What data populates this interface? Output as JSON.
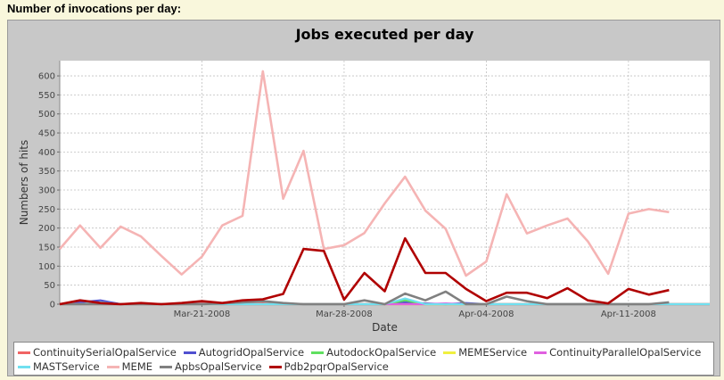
{
  "page": {
    "heading": "Number of invocations per day:"
  },
  "chart_data": {
    "type": "line",
    "title": "Jobs executed per day",
    "xlabel": "Date",
    "ylabel": "Numbers of hits",
    "ylim": [
      0,
      640
    ],
    "yticks": [
      0,
      50,
      100,
      150,
      200,
      250,
      300,
      350,
      400,
      450,
      500,
      550,
      600
    ],
    "grid": true,
    "legend_position": "bottom",
    "x": [
      "2008-03-14",
      "2008-03-15",
      "2008-03-16",
      "2008-03-17",
      "2008-03-18",
      "2008-03-19",
      "2008-03-20",
      "2008-03-21",
      "2008-03-22",
      "2008-03-23",
      "2008-03-24",
      "2008-03-25",
      "2008-03-26",
      "2008-03-27",
      "2008-03-28",
      "2008-03-29",
      "2008-03-30",
      "2008-03-31",
      "2008-04-01",
      "2008-04-02",
      "2008-04-03",
      "2008-04-04",
      "2008-04-05",
      "2008-04-06",
      "2008-04-07",
      "2008-04-08",
      "2008-04-09",
      "2008-04-10",
      "2008-04-11",
      "2008-04-12",
      "2008-04-13",
      "2008-04-14",
      "2008-04-15"
    ],
    "xticks": [
      {
        "date": "2008-03-21",
        "label": "Mar-21-2008"
      },
      {
        "date": "2008-03-28",
        "label": "Mar-28-2008"
      },
      {
        "date": "2008-04-04",
        "label": "Apr-04-2008"
      },
      {
        "date": "2008-04-11",
        "label": "Apr-11-2008"
      }
    ],
    "series": [
      {
        "name": "ContinuitySerialOpalService",
        "color": "#f06464",
        "values": [
          0,
          2,
          3,
          0,
          1,
          0,
          0,
          2,
          0,
          1,
          2,
          0,
          0,
          0,
          0,
          0,
          0,
          0,
          0,
          0,
          0,
          0,
          0,
          0,
          0,
          0,
          0,
          0,
          0,
          0,
          0,
          0,
          0
        ]
      },
      {
        "name": "AutogridOpalService",
        "color": "#5050d0",
        "values": [
          0,
          5,
          10,
          0,
          2,
          0,
          0,
          1,
          0,
          0,
          0,
          0,
          0,
          0,
          0,
          0,
          0,
          5,
          2,
          0,
          3,
          0,
          0,
          0,
          0,
          0,
          0,
          0,
          0,
          0,
          0,
          0,
          0
        ]
      },
      {
        "name": "AutodockOpalService",
        "color": "#60e060",
        "values": [
          0,
          0,
          3,
          0,
          0,
          0,
          0,
          0,
          0,
          0,
          0,
          0,
          0,
          0,
          0,
          0,
          0,
          10,
          0,
          0,
          0,
          0,
          0,
          0,
          0,
          0,
          0,
          0,
          0,
          0,
          0,
          0,
          0
        ]
      },
      {
        "name": "MEMEService",
        "color": "#f0f040",
        "values": [
          0,
          0,
          0,
          0,
          0,
          0,
          0,
          0,
          0,
          0,
          0,
          0,
          0,
          0,
          0,
          0,
          0,
          0,
          0,
          0,
          0,
          0,
          0,
          0,
          0,
          0,
          0,
          0,
          0,
          0,
          0,
          0,
          0
        ]
      },
      {
        "name": "ContinuityParallelOpalService",
        "color": "#e060e0",
        "values": [
          0,
          0,
          0,
          0,
          0,
          0,
          0,
          0,
          0,
          0,
          0,
          0,
          0,
          0,
          0,
          0,
          0,
          0,
          0,
          2,
          0,
          0,
          0,
          0,
          0,
          0,
          0,
          0,
          0,
          0,
          0,
          0,
          0
        ]
      },
      {
        "name": "MASTService",
        "color": "#70e0f0",
        "values": [
          0,
          0,
          5,
          0,
          0,
          0,
          0,
          0,
          0,
          0,
          0,
          0,
          0,
          0,
          0,
          0,
          0,
          15,
          0,
          0,
          0,
          0,
          0,
          0,
          0,
          0,
          0,
          0,
          0,
          0,
          0,
          0,
          0
        ]
      },
      {
        "name": "MEME",
        "color": "#f5b4b4",
        "values": [
          145,
          207,
          148,
          204,
          178,
          127,
          78,
          125,
          207,
          232,
          612,
          277,
          403,
          145,
          155,
          187,
          265,
          335,
          246,
          198,
          75,
          112,
          289,
          186,
          207,
          225,
          165,
          80,
          238,
          250,
          242,
          null,
          null
        ]
      },
      {
        "name": "ApbsOpalService",
        "color": "#808080",
        "values": [
          0,
          0,
          0,
          0,
          0,
          0,
          0,
          0,
          2,
          5,
          8,
          3,
          0,
          0,
          0,
          10,
          0,
          28,
          10,
          33,
          0,
          0,
          20,
          8,
          0,
          0,
          0,
          0,
          0,
          0,
          5,
          null,
          null
        ]
      },
      {
        "name": "Pdb2pqrOpalService",
        "color": "#b00000",
        "values": [
          0,
          10,
          3,
          0,
          3,
          0,
          3,
          8,
          3,
          10,
          13,
          27,
          145,
          140,
          12,
          82,
          34,
          173,
          82,
          82,
          40,
          8,
          30,
          30,
          16,
          42,
          10,
          2,
          40,
          25,
          37,
          null,
          null
        ]
      }
    ]
  }
}
